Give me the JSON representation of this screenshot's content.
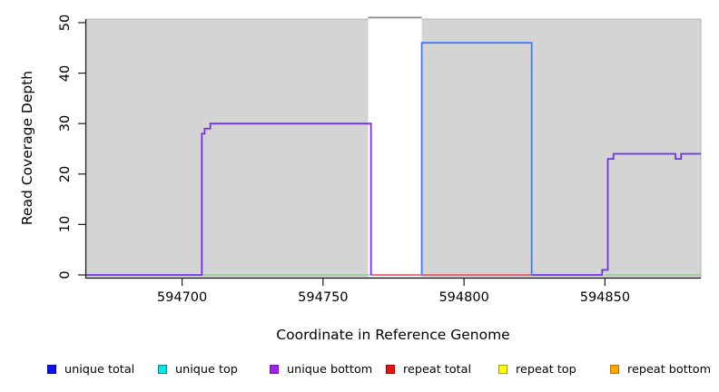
{
  "chart_data": {
    "type": "line",
    "subtype": "step-coverage",
    "title": "",
    "xlabel": "Coordinate in Reference Genome",
    "ylabel": "Read Coverage Depth",
    "xlim": [
      594666,
      594884
    ],
    "ylim": [
      0,
      51
    ],
    "x_ticks": [
      594700,
      594750,
      594800,
      594850
    ],
    "y_ticks": [
      0,
      10,
      20,
      30,
      40,
      50
    ],
    "grid": "off",
    "plot_bg_color": "#d4d4d4",
    "offscale_region": {
      "from": 594766,
      "to": 594785,
      "fill": "#ffffff",
      "top_line_color": "#878787",
      "top_value": 51
    },
    "series": [
      {
        "name": "strand overlap baseline",
        "color": "#8fce8f",
        "width": 1.4,
        "runs": [
          [
            [
              594707,
              594767,
              0
            ]
          ],
          [
            [
              594850,
              594884,
              0
            ]
          ]
        ]
      },
      {
        "name": "repeat total",
        "color": "#e8455a",
        "width": 1.6,
        "runs": [
          [
            [
              594767,
              594824,
              0
            ]
          ]
        ]
      },
      {
        "name": "unique bottom",
        "color": "#7430ee",
        "width": 1.8,
        "runs": [
          [
            [
              594666,
              594707,
              0
            ],
            [
              594707,
              594708,
              28
            ],
            [
              594708,
              594710,
              29
            ],
            [
              594710,
              594767,
              30
            ],
            [
              594767,
              594767,
              0
            ]
          ],
          [
            [
              594824,
              594849,
              0
            ],
            [
              594849,
              594851,
              1
            ],
            [
              594851,
              594853,
              23
            ],
            [
              594853,
              594875,
              24
            ],
            [
              594875,
              594877,
              23
            ],
            [
              594877,
              594884,
              24
            ]
          ]
        ]
      },
      {
        "name": "unique total",
        "color": "#3d7cf4",
        "width": 1.8,
        "runs": [
          [
            [
              594785,
              594785,
              0
            ],
            [
              594785,
              594824,
              46
            ],
            [
              594824,
              594824,
              0
            ]
          ]
        ]
      },
      {
        "name": "total off-scale",
        "color": "#878787",
        "width": 1.8,
        "runs": [
          [
            [
              594766,
              594785,
              51
            ]
          ]
        ]
      }
    ]
  },
  "legend": {
    "items": [
      {
        "label": "unique total",
        "fill": "#1111ee",
        "border": "#0000b0"
      },
      {
        "label": "unique top",
        "fill": "#00e8e8",
        "border": "#008b8b"
      },
      {
        "label": "unique bottom",
        "fill": "#a020f0",
        "border": "#7a10c0"
      },
      {
        "label": "repeat total",
        "fill": "#ee1111",
        "border": "#a00000"
      },
      {
        "label": "repeat top",
        "fill": "#ffff00",
        "border": "#a0a000"
      },
      {
        "label": "repeat bottom",
        "fill": "#ffa500",
        "border": "#b37400"
      }
    ]
  },
  "axes_text": {
    "x_title": "Coordinate in Reference Genome",
    "y_title": "Read Coverage Depth"
  }
}
